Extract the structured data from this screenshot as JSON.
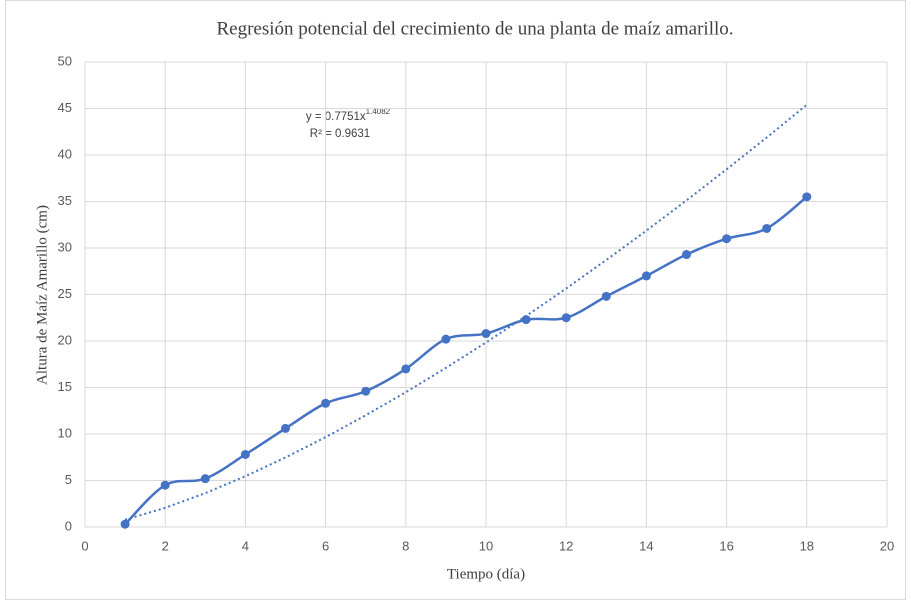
{
  "chart_data": {
    "type": "scatter",
    "title": "Regresión potencial del crecimiento de una planta de maíz amarillo.",
    "x_label": "Tiempo (día)",
    "y_label": "Altura de Maíz Amarillo  (cm)",
    "x": [
      1,
      2,
      3,
      4,
      5,
      6,
      7,
      8,
      9,
      10,
      11,
      12,
      13,
      14,
      15,
      16,
      17,
      18
    ],
    "series": [
      {
        "color": "#4472c4",
        "style": "smooth",
        "markers": true,
        "values": [
          0.3,
          4.5,
          5.2,
          7.8,
          10.6,
          13.3,
          14.6,
          17,
          20.2,
          20.8,
          22.3,
          22.5,
          24.8,
          27,
          29.3,
          31,
          32.1,
          35.5
        ]
      },
      {
        "color": "#4472c4",
        "style": "dotted",
        "markers": false,
        "values": [
          0.78,
          2.06,
          3.64,
          5.46,
          7.48,
          9.66,
          12.01,
          14.49,
          17.11,
          19.84,
          22.69,
          25.65,
          28.71,
          31.87,
          35.12,
          38.46,
          41.88,
          45.4
        ]
      }
    ],
    "annotations": [
      {
        "text": "y = 0.7751x",
        "superscript": "1.4082"
      },
      {
        "text": "R² = 0.9631"
      }
    ],
    "xlim": [
      0,
      20
    ],
    "xticks": [
      0,
      2,
      4,
      6,
      8,
      10,
      12,
      14,
      16,
      18,
      20
    ],
    "ylim": [
      0,
      50
    ],
    "yticks": [
      0,
      5,
      10,
      15,
      20,
      25,
      30,
      35,
      40,
      45,
      50
    ],
    "grid": true
  }
}
